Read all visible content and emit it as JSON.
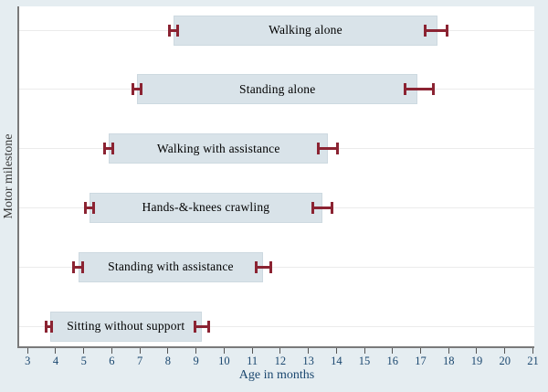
{
  "chart_data": {
    "type": "bar",
    "subtype": "horizontal-range-bars-with-error-bars",
    "title": "",
    "xlabel": "Age in months",
    "ylabel": "Motor milestone",
    "units": "months",
    "legend": "none",
    "grid": "horizontal gridline per category row",
    "x_axis": {
      "min": 2.7,
      "max": 21.05,
      "ticks": [
        3,
        4,
        5,
        6,
        7,
        8,
        9,
        10,
        11,
        12,
        13,
        14,
        15,
        16,
        17,
        18,
        19,
        20,
        21
      ]
    },
    "series": [
      {
        "label": "Walking alone",
        "window_start": 8.2,
        "window_end": 17.6,
        "ci_start": [
          8.0,
          8.4
        ],
        "ci_end": [
          17.1,
          18.0
        ]
      },
      {
        "label": "Standing alone",
        "window_start": 6.9,
        "window_end": 16.9,
        "ci_start": [
          6.7,
          7.1
        ],
        "ci_end": [
          16.4,
          17.5
        ]
      },
      {
        "label": "Walking with assistance",
        "window_start": 5.9,
        "window_end": 13.7,
        "ci_start": [
          5.7,
          6.1
        ],
        "ci_end": [
          13.3,
          14.1
        ]
      },
      {
        "label": "Hands-&-knees crawling",
        "window_start": 5.2,
        "window_end": 13.5,
        "ci_start": [
          5.0,
          5.4
        ],
        "ci_end": [
          13.1,
          13.9
        ]
      },
      {
        "label": "Standing with assistance",
        "window_start": 4.8,
        "window_end": 11.4,
        "ci_start": [
          4.6,
          5.0
        ],
        "ci_end": [
          11.1,
          11.7
        ]
      },
      {
        "label": "Sitting without support",
        "window_start": 3.8,
        "window_end": 9.2,
        "ci_start": [
          3.6,
          3.9
        ],
        "ci_end": [
          8.9,
          9.5
        ]
      }
    ],
    "colors": {
      "background": "#e5edf1",
      "plot_background": "#ffffff",
      "bar_fill": "#d9e3e9",
      "bar_border": "#cdd9e0",
      "error_bar": "#8b2332",
      "gridline": "#ebebeb",
      "axis_line": "#7a7a7a",
      "tick_text": "#1a476f",
      "bar_label_text": "#000000",
      "y_title_text": "#3a3a3a"
    }
  }
}
